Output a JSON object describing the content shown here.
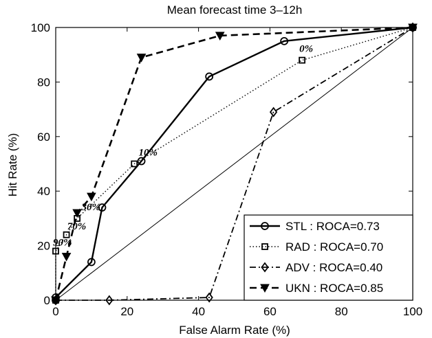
{
  "chart_data": {
    "type": "line",
    "title": "Mean forecast time 3–12h",
    "xlabel": "False Alarm Rate (%)",
    "ylabel": "Hit Rate (%)",
    "xlim": [
      0,
      100
    ],
    "ylim": [
      0,
      100
    ],
    "xticks": [
      "0",
      "20",
      "40",
      "60",
      "80",
      "100"
    ],
    "yticks": [
      "0",
      "20",
      "40",
      "60",
      "80",
      "100"
    ],
    "grid": false,
    "legend_position": "bottom-right",
    "diagonal_reference": true,
    "series": [
      {
        "name": "STL : ROCA=0.73",
        "marker": "circle",
        "line": "solid",
        "points": [
          [
            0,
            0
          ],
          [
            0,
            1
          ],
          [
            10,
            14
          ],
          [
            13,
            34
          ],
          [
            24,
            51
          ],
          [
            43,
            82
          ],
          [
            64,
            95
          ],
          [
            100,
            100
          ]
        ]
      },
      {
        "name": "RAD : ROCA=0.70",
        "marker": "square",
        "line": "dotted",
        "points": [
          [
            0,
            0
          ],
          [
            0,
            18
          ],
          [
            3,
            24
          ],
          [
            6,
            30
          ],
          [
            22,
            50
          ],
          [
            69,
            88
          ],
          [
            100,
            100
          ]
        ]
      },
      {
        "name": "ADV : ROCA=0.40",
        "marker": "diamond",
        "line": "dashdot",
        "points": [
          [
            0,
            0
          ],
          [
            15,
            0
          ],
          [
            43,
            1
          ],
          [
            61,
            69
          ],
          [
            100,
            100
          ]
        ]
      },
      {
        "name": "UKN : ROCA=0.85",
        "marker": "triangle",
        "line": "dashed",
        "points": [
          [
            0,
            0
          ],
          [
            3,
            16
          ],
          [
            6,
            32
          ],
          [
            10,
            38
          ],
          [
            24,
            89
          ],
          [
            46,
            97
          ],
          [
            100,
            100
          ]
        ]
      }
    ],
    "annotations": [
      {
        "text": "90%",
        "x": 0,
        "y": 20
      },
      {
        "text": "70%",
        "x": 4,
        "y": 26
      },
      {
        "text": "30%",
        "x": 8,
        "y": 33
      },
      {
        "text": "10%",
        "x": 24,
        "y": 53
      },
      {
        "text": "0%",
        "x": 69,
        "y": 91
      }
    ]
  }
}
